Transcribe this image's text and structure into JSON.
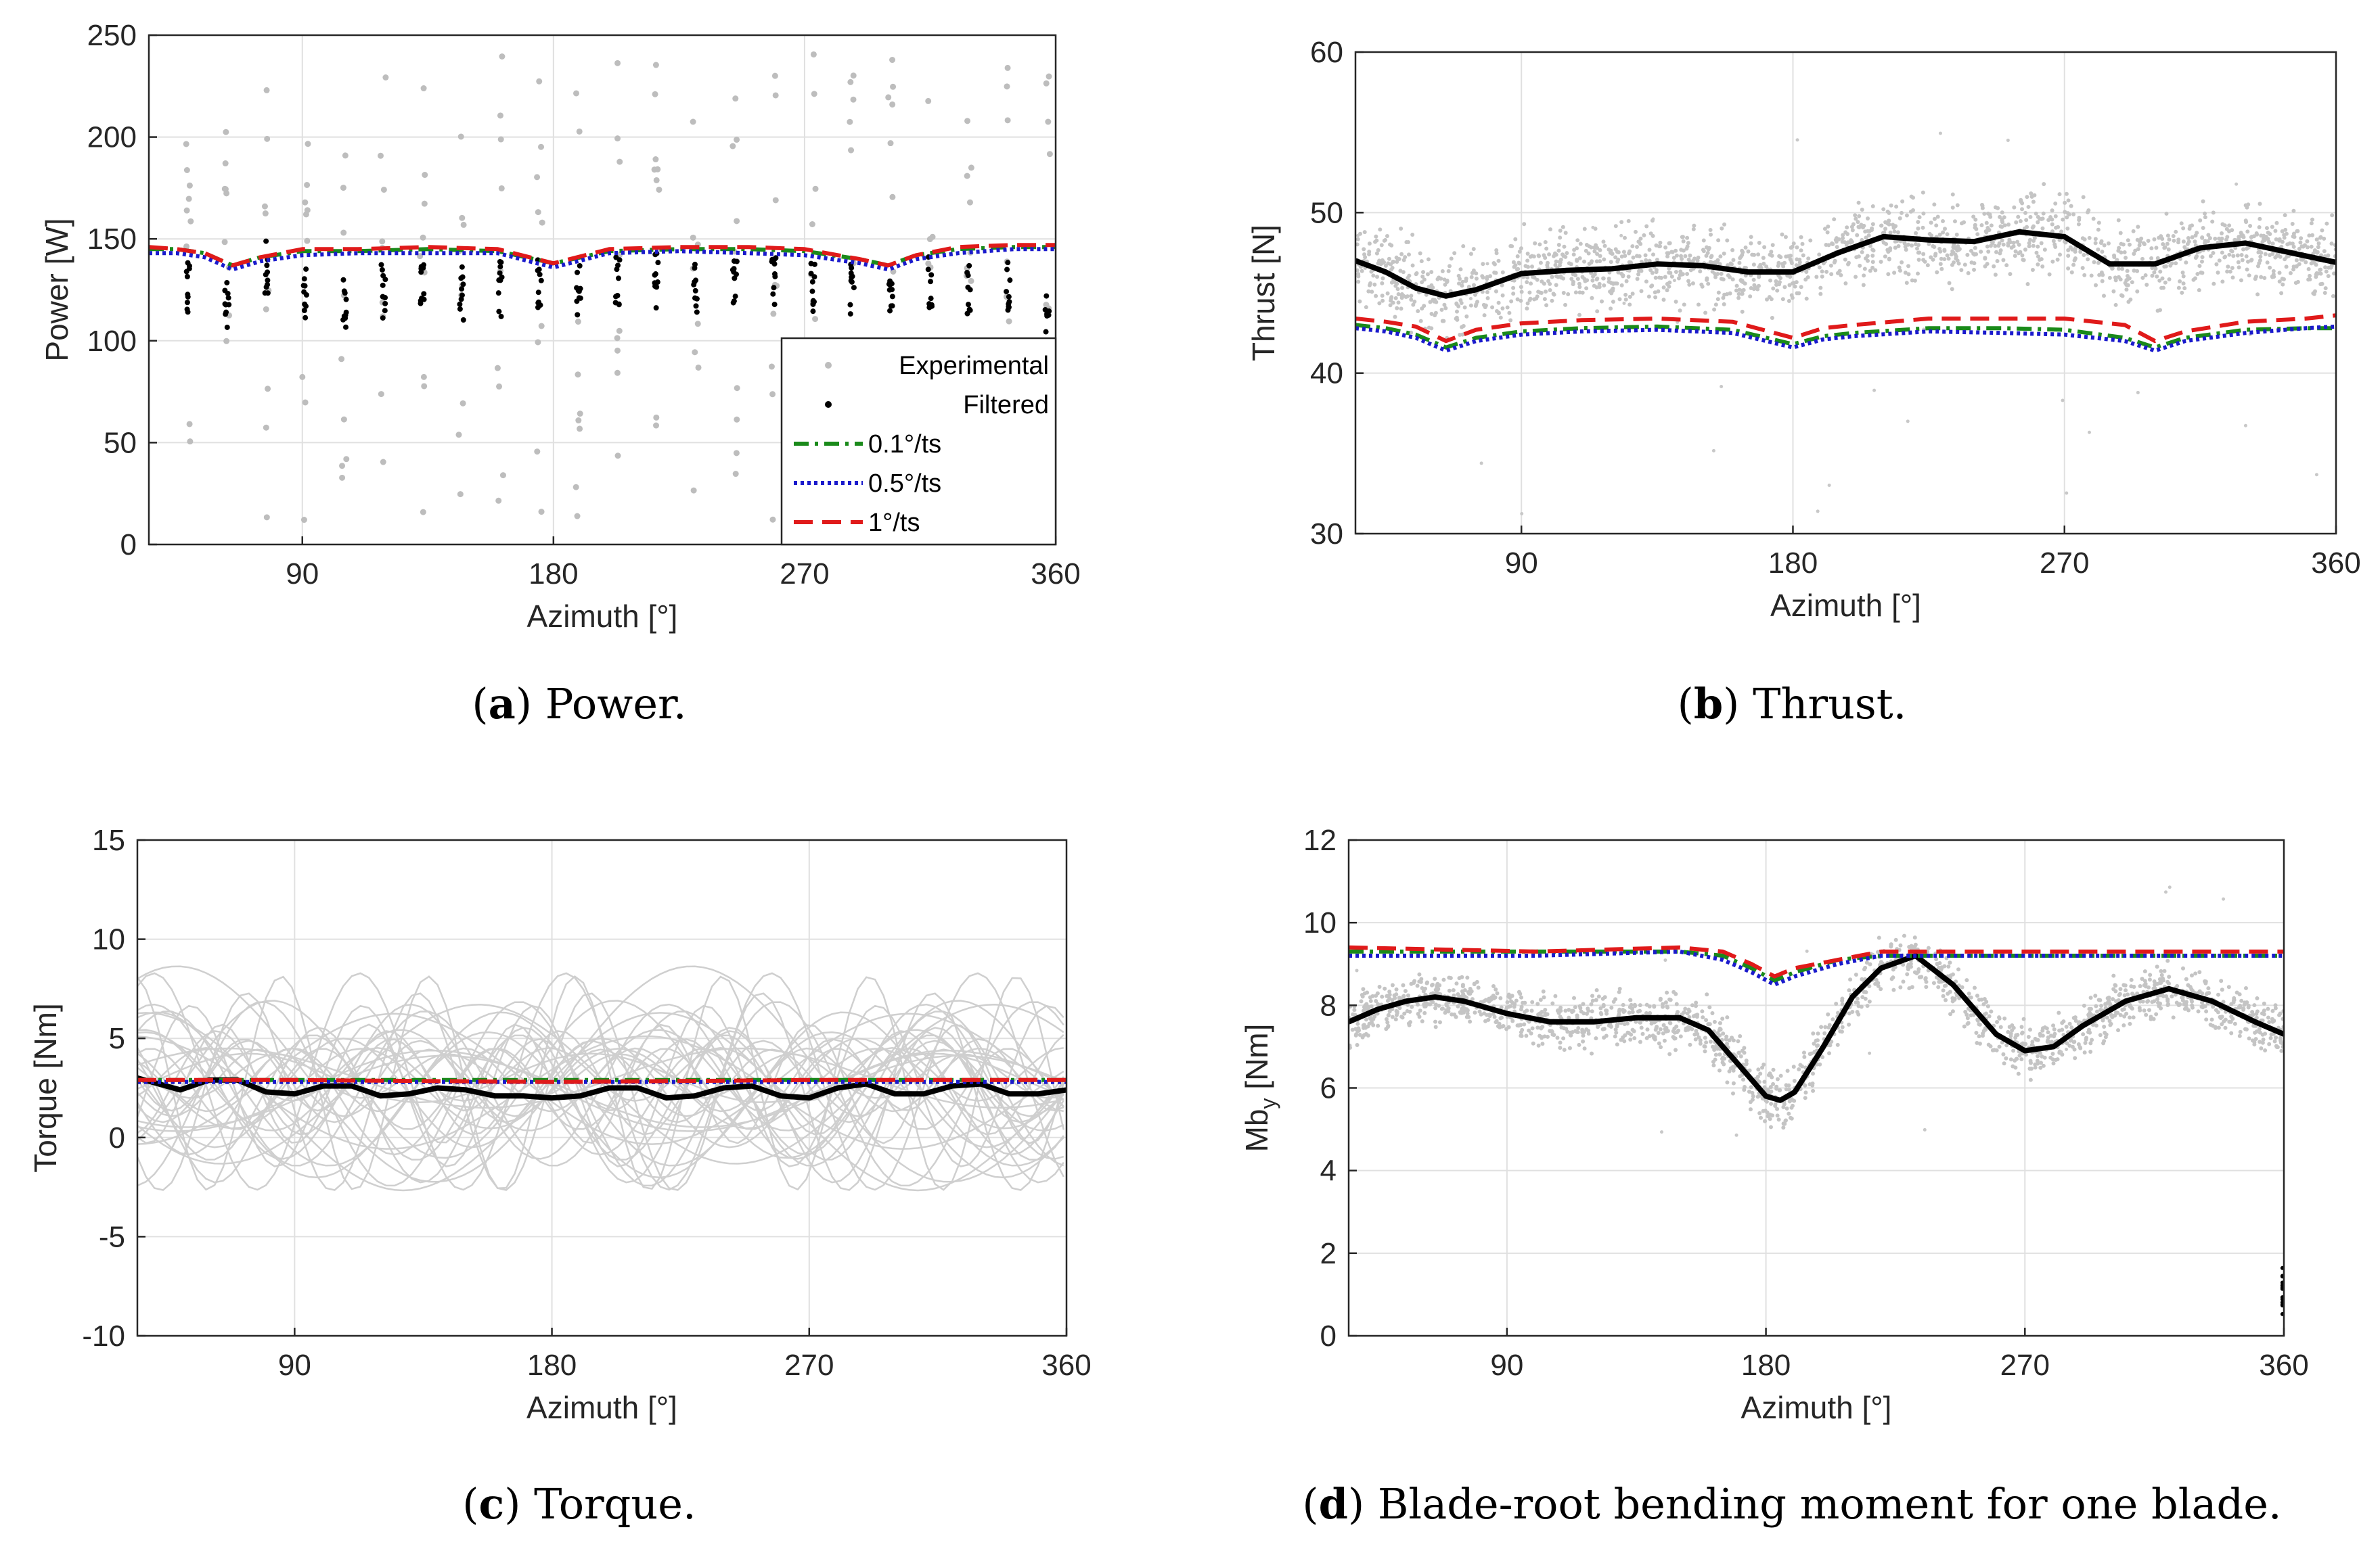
{
  "chart_data": [
    {
      "id": "a",
      "type": "line",
      "caption_letter": "a",
      "caption_text": " Power.",
      "xlabel": "Azimuth [°]",
      "ylabel": "Power [W]",
      "xlim": [
        35,
        360
      ],
      "ylim": [
        0,
        250
      ],
      "xticks": [
        90,
        180,
        270,
        360
      ],
      "yticks": [
        0,
        50,
        100,
        150,
        200,
        250
      ],
      "legend": [
        "Experimental",
        "Filtered",
        "0.1°/ts",
        "0.5°/ts",
        "1°/ts"
      ],
      "legend_position": "bottom-right",
      "filtered_mean": [
        [
          49,
          125
        ],
        [
          63,
          120
        ],
        [
          77,
          135
        ],
        [
          91,
          122
        ],
        [
          105,
          118
        ],
        [
          119,
          124
        ],
        [
          133,
          128
        ],
        [
          147,
          123
        ],
        [
          161,
          125
        ],
        [
          175,
          130
        ],
        [
          189,
          125
        ],
        [
          203,
          128
        ],
        [
          217,
          130
        ],
        [
          231,
          126
        ],
        [
          245,
          128
        ],
        [
          259,
          127
        ],
        [
          273,
          126
        ],
        [
          287,
          125
        ],
        [
          301,
          128
        ],
        [
          315,
          130
        ],
        [
          329,
          127
        ],
        [
          343,
          125
        ],
        [
          357,
          110
        ]
      ],
      "series": [
        {
          "name": "0.1°/ts",
          "color": "#1a8a1a",
          "dash": "dashdot",
          "x": [
            35,
            45,
            55,
            65,
            75,
            90,
            110,
            135,
            160,
            180,
            200,
            225,
            250,
            270,
            290,
            300,
            310,
            325,
            345,
            360
          ],
          "values": [
            145,
            145,
            143,
            137,
            141,
            144,
            144,
            145,
            144,
            138,
            144,
            145,
            145,
            144,
            140,
            137,
            142,
            145,
            146,
            146
          ]
        },
        {
          "name": "0.5°/ts",
          "color": "#1a1acc",
          "dash": "dotted",
          "x": [
            35,
            45,
            55,
            65,
            75,
            90,
            110,
            135,
            160,
            180,
            200,
            225,
            250,
            270,
            290,
            300,
            310,
            325,
            345,
            360
          ],
          "values": [
            143,
            143,
            141,
            135,
            139,
            142,
            143,
            143,
            143,
            136,
            143,
            144,
            143,
            142,
            138,
            135,
            140,
            143,
            145,
            145
          ]
        },
        {
          "name": "1°/ts",
          "color": "#e01a1a",
          "dash": "dashed",
          "x": [
            35,
            45,
            55,
            65,
            75,
            90,
            110,
            135,
            160,
            180,
            200,
            225,
            250,
            270,
            290,
            300,
            310,
            325,
            345,
            360
          ],
          "values": [
            146,
            145,
            143,
            137,
            141,
            145,
            145,
            146,
            145,
            138,
            145,
            146,
            146,
            145,
            140,
            137,
            142,
            146,
            147,
            147
          ]
        }
      ]
    },
    {
      "id": "b",
      "type": "line",
      "caption_letter": "b",
      "caption_text": " Thrust.",
      "xlabel": "Azimuth [°]",
      "ylabel": "Thrust [N]",
      "xlim": [
        35,
        360
      ],
      "ylim": [
        30,
        60
      ],
      "xticks": [
        90,
        180,
        270,
        360
      ],
      "yticks": [
        30,
        40,
        50,
        60
      ],
      "series": [
        {
          "name": "Filtered",
          "color": "#000000",
          "dash": "solid",
          "x": [
            35,
            45,
            55,
            65,
            75,
            90,
            105,
            120,
            135,
            150,
            165,
            180,
            195,
            210,
            225,
            240,
            255,
            270,
            285,
            300,
            315,
            330,
            345,
            360
          ],
          "values": [
            47,
            46.3,
            45.3,
            44.8,
            45.2,
            46.2,
            46.4,
            46.5,
            46.8,
            46.7,
            46.3,
            46.3,
            47.5,
            48.5,
            48.3,
            48.2,
            48.8,
            48.5,
            46.8,
            46.8,
            47.8,
            48.1,
            47.5,
            46.9
          ]
        },
        {
          "name": "0.1°/ts",
          "color": "#1a8a1a",
          "dash": "dashdot",
          "x": [
            35,
            45,
            55,
            65,
            75,
            90,
            110,
            135,
            160,
            180,
            190,
            200,
            225,
            250,
            270,
            290,
            300,
            310,
            330,
            350,
            360
          ],
          "values": [
            43,
            42.8,
            42.4,
            41.6,
            42.2,
            42.6,
            42.8,
            42.9,
            42.7,
            41.8,
            42.3,
            42.5,
            42.8,
            42.8,
            42.7,
            42.2,
            41.6,
            42.2,
            42.7,
            42.8,
            42.8
          ]
        },
        {
          "name": "0.5°/ts",
          "color": "#1a1acc",
          "dash": "dotted",
          "x": [
            35,
            45,
            55,
            65,
            75,
            90,
            110,
            135,
            160,
            180,
            190,
            200,
            225,
            250,
            270,
            290,
            300,
            310,
            330,
            350,
            360
          ],
          "values": [
            42.8,
            42.6,
            42.2,
            41.4,
            42.0,
            42.4,
            42.6,
            42.7,
            42.5,
            41.6,
            42.1,
            42.3,
            42.6,
            42.5,
            42.4,
            42.0,
            41.4,
            42.0,
            42.5,
            42.8,
            42.9
          ]
        },
        {
          "name": "1°/ts",
          "color": "#e01a1a",
          "dash": "dashed",
          "x": [
            35,
            45,
            55,
            65,
            75,
            90,
            110,
            135,
            160,
            180,
            190,
            200,
            225,
            250,
            270,
            290,
            300,
            310,
            330,
            350,
            360
          ],
          "values": [
            43.4,
            43.2,
            42.9,
            42.0,
            42.7,
            43.1,
            43.3,
            43.4,
            43.2,
            42.2,
            42.8,
            43.0,
            43.4,
            43.4,
            43.4,
            43.0,
            42.0,
            42.6,
            43.2,
            43.4,
            43.6
          ]
        }
      ]
    },
    {
      "id": "c",
      "type": "line",
      "caption_letter": "c",
      "caption_text": " Torque.",
      "xlabel": "Azimuth [°]",
      "ylabel": "Torque [Nm]",
      "xlim": [
        35,
        360
      ],
      "ylim": [
        -10,
        15
      ],
      "xticks": [
        90,
        180,
        270,
        360
      ],
      "yticks": [
        -10,
        -5,
        0,
        5,
        10,
        15
      ],
      "series": [
        {
          "name": "Filtered",
          "color": "#000000",
          "dash": "solid",
          "x": [
            35,
            40,
            50,
            60,
            70,
            80,
            90,
            100,
            110,
            120,
            130,
            140,
            150,
            160,
            170,
            180,
            190,
            200,
            210,
            220,
            230,
            240,
            250,
            260,
            270,
            280,
            290,
            300,
            310,
            320,
            330,
            340,
            350,
            360
          ],
          "values": [
            3.0,
            2.8,
            2.4,
            2.9,
            2.9,
            2.3,
            2.2,
            2.6,
            2.6,
            2.1,
            2.2,
            2.5,
            2.4,
            2.1,
            2.1,
            2.0,
            2.1,
            2.5,
            2.5,
            2.0,
            2.1,
            2.5,
            2.6,
            2.1,
            2.0,
            2.5,
            2.7,
            2.2,
            2.2,
            2.6,
            2.7,
            2.2,
            2.2,
            2.4
          ]
        },
        {
          "name": "0.1°/ts",
          "color": "#1a8a1a",
          "dash": "dashdot",
          "x": [
            35,
            90,
            180,
            270,
            360
          ],
          "values": [
            2.9,
            2.9,
            2.9,
            2.9,
            2.9
          ]
        },
        {
          "name": "0.5°/ts",
          "color": "#1a1acc",
          "dash": "dotted",
          "x": [
            35,
            90,
            180,
            270,
            360
          ],
          "values": [
            2.8,
            2.8,
            2.8,
            2.8,
            2.8
          ]
        },
        {
          "name": "1°/ts",
          "color": "#e01a1a",
          "dash": "dashed",
          "x": [
            35,
            90,
            180,
            270,
            360
          ],
          "values": [
            2.9,
            2.9,
            2.8,
            2.9,
            2.9
          ]
        }
      ]
    },
    {
      "id": "d",
      "type": "line",
      "caption_letter": "d",
      "caption_text": " Blade-root bending moment for one blade.",
      "xlabel": "Azimuth [°]",
      "ylabel": "Mb",
      "ylabel_sub": "y",
      "ylabel_unit": " [Nm]",
      "xlim": [
        35,
        360
      ],
      "ylim": [
        0,
        12
      ],
      "xticks": [
        90,
        180,
        270,
        360
      ],
      "yticks": [
        0,
        2,
        4,
        6,
        8,
        10,
        12
      ],
      "series": [
        {
          "name": "Filtered",
          "color": "#000000",
          "dash": "solid",
          "x": [
            35,
            45,
            55,
            65,
            75,
            90,
            105,
            120,
            135,
            150,
            160,
            170,
            180,
            185,
            190,
            200,
            210,
            220,
            232,
            245,
            260,
            270,
            280,
            290,
            305,
            320,
            335,
            350,
            360
          ],
          "values": [
            7.6,
            7.9,
            8.1,
            8.2,
            8.1,
            7.8,
            7.6,
            7.6,
            7.7,
            7.7,
            7.4,
            6.6,
            5.8,
            5.7,
            5.9,
            7.0,
            8.2,
            8.9,
            9.2,
            8.5,
            7.3,
            6.9,
            7.0,
            7.5,
            8.1,
            8.4,
            8.1,
            7.6,
            7.3
          ]
        },
        {
          "name": "0.1°/ts",
          "color": "#1a8a1a",
          "dash": "dashdot",
          "x": [
            35,
            100,
            150,
            165,
            175,
            183,
            190,
            205,
            220,
            240,
            300,
            360
          ],
          "values": [
            9.3,
            9.3,
            9.3,
            9.2,
            8.9,
            8.6,
            8.8,
            9.1,
            9.2,
            9.2,
            9.2,
            9.2
          ]
        },
        {
          "name": "0.5°/ts",
          "color": "#1a1acc",
          "dash": "dotted",
          "x": [
            35,
            100,
            150,
            165,
            175,
            183,
            190,
            205,
            220,
            240,
            300,
            360
          ],
          "values": [
            9.2,
            9.2,
            9.3,
            9.1,
            8.8,
            8.5,
            8.7,
            9.0,
            9.2,
            9.2,
            9.2,
            9.2
          ]
        },
        {
          "name": "1°/ts",
          "color": "#e01a1a",
          "dash": "dashed",
          "x": [
            35,
            100,
            150,
            165,
            175,
            183,
            190,
            205,
            220,
            240,
            300,
            360
          ],
          "values": [
            9.4,
            9.3,
            9.4,
            9.3,
            9.0,
            8.7,
            8.9,
            9.1,
            9.3,
            9.3,
            9.3,
            9.3
          ]
        }
      ]
    }
  ]
}
